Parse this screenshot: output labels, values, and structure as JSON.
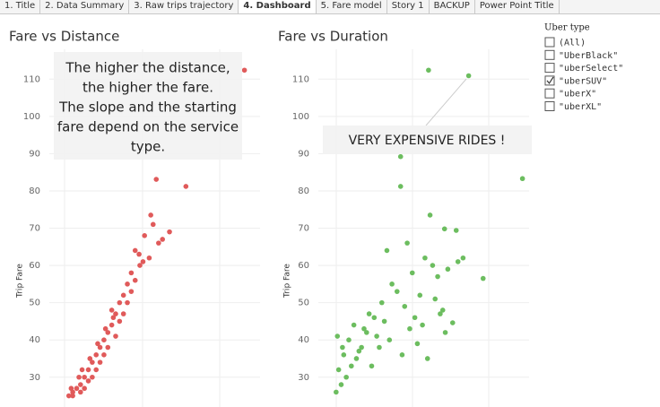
{
  "tabs": [
    "1. Title",
    "2. Data Summary",
    "3. Raw trips trajectory",
    "4. Dashboard",
    "5. Fare model",
    "Story 1",
    "BACKUP",
    "Power Point Title"
  ],
  "active_tab": 3,
  "chart_data": [
    {
      "type": "scatter",
      "title": "Fare vs Distance",
      "y_label": "Trip Fare",
      "annotation": [
        "The higher the distance,",
        "the higher the fare.",
        "The slope and the starting",
        "fare depend on the service",
        "type."
      ],
      "xlim": [
        -2,
        25
      ],
      "ylim": [
        22,
        118
      ],
      "yticks": [
        30,
        40,
        50,
        60,
        70,
        80,
        90,
        100,
        110
      ],
      "series": [
        {
          "color": "#e05a5a",
          "x": [
            23.0,
            15.5,
            11.7,
            13.4,
            11,
            11.3,
            10.2,
            9.6,
            9,
            8.5,
            8,
            7.5,
            7,
            6.5,
            6,
            5.5,
            5,
            4.5,
            4,
            3.5,
            3,
            2.5,
            2,
            1.5,
            1,
            0.5,
            6,
            7,
            5,
            8,
            9,
            4,
            3,
            2,
            1,
            2.5,
            3.5,
            4.5,
            5.5,
            6.5,
            7.5,
            8.5,
            10,
            10.8,
            12,
            12.5,
            9.5,
            1.8,
            2.2,
            3.2,
            4.2,
            5.2,
            6.2,
            0.8
          ],
          "values": [
            112.4,
            81.2,
            83.1,
            69,
            73.5,
            71,
            68,
            60,
            64,
            58,
            55,
            52,
            50,
            47,
            44,
            42,
            40,
            38,
            36,
            34,
            32,
            30,
            28,
            27,
            26,
            25,
            48,
            45,
            36,
            50,
            56,
            32,
            29,
            26,
            25,
            27,
            30,
            34,
            38,
            41,
            47,
            53,
            61,
            62,
            66,
            67,
            63,
            30,
            32,
            35,
            39,
            43,
            46,
            27
          ]
        }
      ]
    },
    {
      "type": "scatter",
      "title": "Fare vs Duration",
      "y_label": "Trip Fare",
      "annotation": [
        "VERY EXPENSIVE RIDES !"
      ],
      "xlim": [
        -7,
        76
      ],
      "ylim": [
        22,
        118
      ],
      "yticks": [
        30,
        40,
        50,
        60,
        70,
        80,
        90,
        100,
        110
      ],
      "series": [
        {
          "color": "#6cbd5f",
          "x": [
            36.4,
            52.2,
            73.4,
            25.4,
            25.4,
            37,
            42.7,
            47.3,
            57.9,
            45.9,
            20,
            22,
            28,
            30,
            33,
            35,
            38,
            40,
            42,
            44,
            48,
            50,
            18,
            15,
            12,
            10,
            8,
            6,
            4,
            2,
            0,
            1,
            3,
            5,
            7,
            9,
            11,
            13,
            16,
            19,
            24,
            27,
            31,
            34,
            39,
            43,
            14,
            17,
            21,
            26,
            29,
            32,
            0.5,
            2.5,
            36,
            41
          ],
          "values": [
            112.4,
            110.9,
            83.3,
            81.2,
            89.2,
            73.5,
            69.8,
            69.4,
            56.5,
            44.6,
            64,
            55,
            66,
            58,
            52,
            62,
            60,
            57,
            48,
            59,
            61,
            62,
            50,
            46,
            42,
            38,
            35,
            33,
            30,
            28,
            26,
            32,
            36,
            40,
            44,
            37,
            43,
            47,
            41,
            45,
            53,
            49,
            46,
            44,
            51,
            42,
            33,
            38,
            40,
            36,
            43,
            39,
            41,
            38,
            35,
            47
          ]
        }
      ]
    }
  ],
  "filter": {
    "title": "Uber type",
    "options": [
      {
        "label": "(All)",
        "checked": false
      },
      {
        "label": "\"UberBlack\"",
        "checked": false
      },
      {
        "label": "\"uberSelect\"",
        "checked": false
      },
      {
        "label": "\"uberSUV\"",
        "checked": true
      },
      {
        "label": "\"uberX\"",
        "checked": false
      },
      {
        "label": "\"uberXL\"",
        "checked": false
      }
    ]
  }
}
